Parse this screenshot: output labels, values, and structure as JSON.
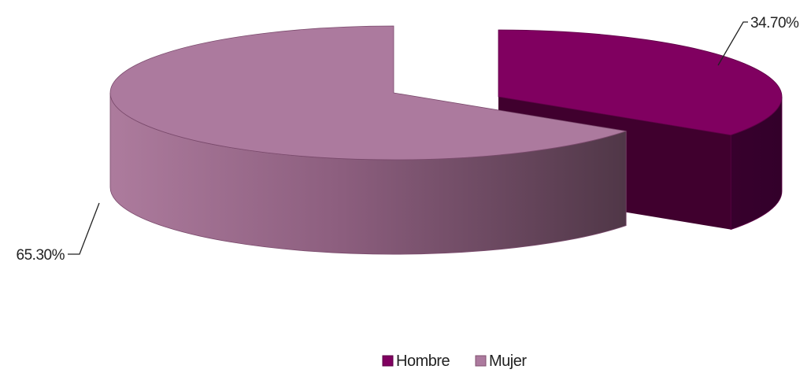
{
  "chart_data": {
    "type": "pie",
    "style": "3d-exploded",
    "title": "",
    "categories": [
      "Hombre",
      "Mujer"
    ],
    "values": [
      34.7,
      65.3
    ],
    "unit": "%",
    "series": [
      {
        "name": "Hombre",
        "value": 34.7,
        "label": "34.70%",
        "color": "#800060",
        "side_color": "#40002e"
      },
      {
        "name": "Mujer",
        "value": 65.3,
        "label": "65.30%",
        "color": "#ac7a9e",
        "side_color": "#5c3a56"
      }
    ],
    "legend": {
      "position": "bottom",
      "entries": [
        "Hombre",
        "Mujer"
      ]
    },
    "grid": false
  }
}
